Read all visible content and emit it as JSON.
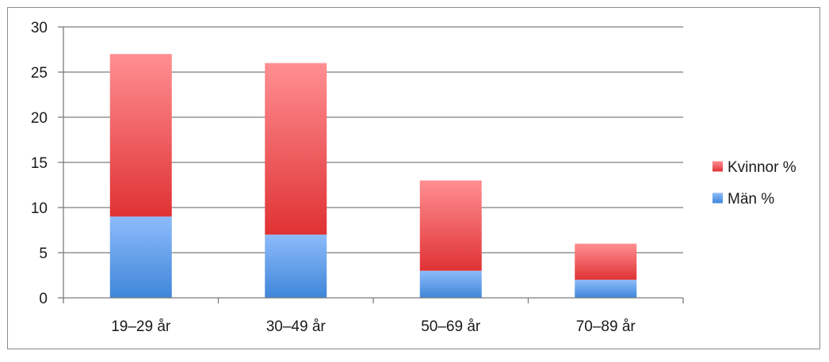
{
  "chart_data": {
    "type": "bar",
    "stacked": true,
    "categories": [
      "19–29 år",
      "30–49 år",
      "50–69 år",
      "70–89 år"
    ],
    "series": [
      {
        "name": "Män %",
        "values": [
          9,
          7,
          3,
          2
        ],
        "color_top": "#8dbbfb",
        "color_bottom": "#3f86d9"
      },
      {
        "name": "Kvinnor %",
        "values": [
          18,
          19,
          10,
          4
        ],
        "color_top": "#ff8f92",
        "color_bottom": "#e03234"
      }
    ],
    "title": "",
    "xlabel": "",
    "ylabel": "",
    "ylim": [
      0,
      30
    ],
    "yticks": [
      "0",
      "5",
      "10",
      "15",
      "20",
      "25",
      "30"
    ],
    "grid": true,
    "legend_position": "right",
    "legend_order": [
      "Kvinnor %",
      "Män %"
    ],
    "colors": {
      "grid": "#7d7d7d",
      "axis": "#7d7d7d",
      "frame": "#8a8a8a"
    }
  }
}
